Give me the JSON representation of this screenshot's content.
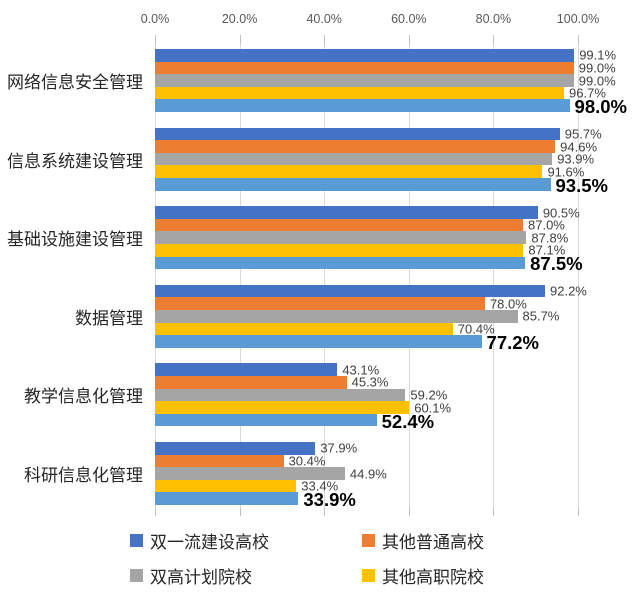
{
  "chart_data": {
    "type": "bar",
    "orientation": "horizontal",
    "title": "",
    "xlabel": "",
    "ylabel": "",
    "xlim": [
      0,
      100
    ],
    "grid": true,
    "legend_position": "bottom",
    "axis_ticks": [
      "0.0%",
      "20.0%",
      "40.0%",
      "60.0%",
      "80.0%",
      "100.0%"
    ],
    "value_label_format": "{value}%",
    "categories": [
      "网络信息安全管理",
      "信息系统建设管理",
      "基础设施建设管理",
      "数据管理",
      "教学信息化管理",
      "科研信息化管理"
    ],
    "series": [
      {
        "key": "double-first-class-universities",
        "name": "双一流建设高校",
        "color": "#4472C4",
        "in_legend": true,
        "bold_labels": false,
        "values": [
          99.1,
          95.7,
          90.5,
          92.2,
          43.1,
          37.9
        ]
      },
      {
        "key": "other-regular-universities",
        "name": "其他普通高校",
        "color": "#ED7D31",
        "in_legend": true,
        "bold_labels": false,
        "values": [
          99.0,
          94.6,
          87.0,
          78.0,
          45.3,
          30.4
        ]
      },
      {
        "key": "double-high-plan-colleges",
        "name": "双高计划院校",
        "color": "#A5A5A5",
        "in_legend": true,
        "bold_labels": false,
        "values": [
          99.0,
          93.9,
          87.8,
          85.7,
          59.2,
          44.9
        ]
      },
      {
        "key": "other-vocational-colleges",
        "name": "其他高职院校",
        "color": "#FFC000",
        "in_legend": true,
        "bold_labels": false,
        "values": [
          96.7,
          91.6,
          87.1,
          70.4,
          60.1,
          33.4
        ]
      },
      {
        "key": "overall",
        "name": "",
        "color": "#5B9BD5",
        "in_legend": false,
        "bold_labels": true,
        "values": [
          98.0,
          93.5,
          87.5,
          77.2,
          52.4,
          33.9
        ]
      }
    ],
    "colors": {
      "gridline": "#D9D9D9",
      "tick": "#BFBFBF",
      "axis_text": "#595959",
      "value_label": "#404040",
      "bold_value_label": "#000000",
      "category_label": "#262626",
      "background": "#FFFFFF"
    }
  }
}
